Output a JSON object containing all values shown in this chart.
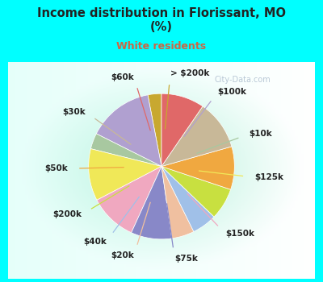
{
  "title": "Income distribution in Florissant, MO\n(%)",
  "subtitle": "White residents",
  "title_color": "#222222",
  "subtitle_color": "#cc6644",
  "bg_outer": "#00ffff",
  "labels": [
    "> $200k",
    "$100k",
    "$10k",
    "$125k",
    "$150k",
    "$75k",
    "$20k",
    "$40k",
    "$200k",
    "$50k",
    "$30k",
    "$60k"
  ],
  "values": [
    3.0,
    14.5,
    3.5,
    11.5,
    10.5,
    9.0,
    5.0,
    5.5,
    7.0,
    9.5,
    11.0,
    9.5
  ],
  "colors": [
    "#c8a830",
    "#b0a0d0",
    "#a8c8a0",
    "#f0e858",
    "#f0a8c0",
    "#8888c8",
    "#f0c0a0",
    "#a0c0e8",
    "#c8e040",
    "#f0a840",
    "#c8b898",
    "#e06868"
  ],
  "wedge_lw": 0.5,
  "wedge_ec": "#ffffff",
  "startangle": 90,
  "label_fontsize": 7.5,
  "label_color": "#222222",
  "watermark": "City-Data.com",
  "watermark_color": "#aabbcc"
}
